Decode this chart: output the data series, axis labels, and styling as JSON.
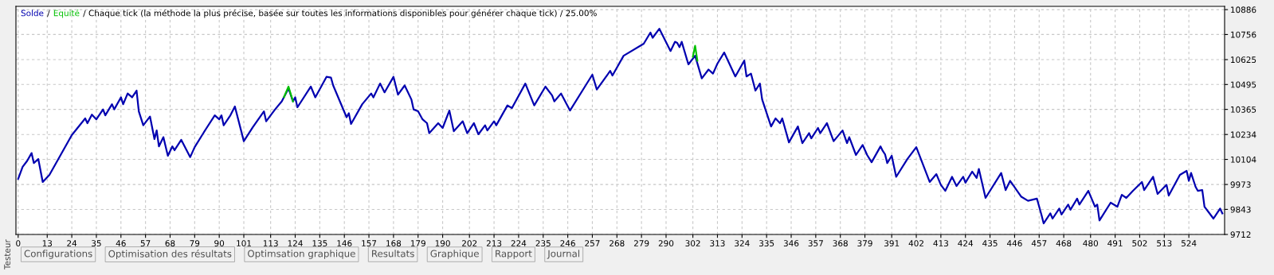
{
  "chart_data": {
    "type": "line",
    "annotations": [
      "/",
      "/ Chaque tick (la méthode la plus précise, basée sur toutes les informations disponibles pour générer chaque tick) / 25.00%",
      "Testeur",
      "Configurations",
      "Optimisation des résultats",
      "Optimsation graphique",
      "Resultats",
      "Graphique",
      "Rapport",
      "Journal"
    ],
    "series": [
      {
        "name": "Solde",
        "color": "#0000b0",
        "x": [
          0,
          2,
          4,
          6,
          7,
          9,
          11,
          14,
          19,
          24,
          30,
          31,
          33,
          35,
          38,
          39,
          42,
          43,
          46,
          47,
          49,
          51,
          53,
          54,
          56,
          59,
          61,
          62,
          63,
          65,
          67,
          69,
          70,
          73,
          77,
          79,
          84,
          88,
          90,
          91,
          92,
          95,
          97,
          101,
          105,
          110,
          111,
          115,
          118,
          121,
          123,
          124,
          125,
          131,
          133,
          138,
          140,
          141,
          147,
          148,
          149,
          154,
          158,
          159,
          162,
          164,
          168,
          170,
          173,
          176,
          177,
          179,
          181,
          183,
          184,
          188,
          190,
          193,
          195,
          199,
          201,
          204,
          206,
          209,
          210,
          213,
          214,
          219,
          221,
          227,
          231,
          236,
          239,
          240,
          243,
          247,
          254,
          257,
          259,
          265,
          266,
          271,
          280,
          283,
          284,
          287,
          292,
          294,
          295,
          296,
          297,
          300,
          303,
          306,
          309,
          311,
          313,
          316,
          321,
          325,
          326,
          328,
          330,
          332,
          333,
          337,
          339,
          341,
          342,
          345,
          349,
          351,
          354,
          355,
          358,
          359,
          362,
          365,
          369,
          371,
          372,
          375,
          378,
          380,
          382,
          386,
          387,
          388,
          389,
          391,
          393,
          398,
          402,
          408,
          411,
          413,
          415,
          418,
          420,
          423,
          424,
          427,
          429,
          430,
          433,
          440,
          442,
          444,
          449,
          452,
          456,
          458,
          459,
          462,
          463,
          466,
          467,
          470,
          471,
          474,
          475,
          479,
          482,
          483,
          484,
          489,
          492,
          494,
          496,
          499,
          503,
          504,
          508,
          510,
          514,
          515,
          520,
          523,
          524,
          525,
          527,
          528,
          530,
          531,
          533,
          535,
          538,
          539
        ],
        "values": [
          10002,
          10065,
          10096,
          10137,
          10085,
          10106,
          9986,
          10023,
          10127,
          10231,
          10318,
          10293,
          10338,
          10313,
          10365,
          10334,
          10392,
          10365,
          10428,
          10392,
          10448,
          10428,
          10463,
          10355,
          10282,
          10328,
          10210,
          10255,
          10172,
          10220,
          10123,
          10172,
          10152,
          10206,
          10116,
          10168,
          10262,
          10334,
          10313,
          10334,
          10282,
          10334,
          10380,
          10199,
          10272,
          10355,
          10303,
          10365,
          10407,
          10475,
          10407,
          10428,
          10376,
          10484,
          10428,
          10535,
          10531,
          10490,
          10324,
          10345,
          10289,
          10392,
          10448,
          10428,
          10500,
          10454,
          10535,
          10442,
          10490,
          10417,
          10365,
          10355,
          10313,
          10293,
          10241,
          10293,
          10268,
          10359,
          10251,
          10303,
          10241,
          10293,
          10235,
          10282,
          10255,
          10303,
          10282,
          10386,
          10372,
          10500,
          10386,
          10484,
          10438,
          10407,
          10448,
          10359,
          10490,
          10546,
          10469,
          10566,
          10542,
          10645,
          10708,
          10766,
          10739,
          10786,
          10670,
          10718,
          10712,
          10690,
          10718,
          10600,
          10645,
          10527,
          10573,
          10552,
          10604,
          10662,
          10537,
          10620,
          10537,
          10552,
          10463,
          10500,
          10417,
          10276,
          10318,
          10293,
          10318,
          10193,
          10276,
          10189,
          10241,
          10214,
          10268,
          10241,
          10293,
          10199,
          10255,
          10189,
          10220,
          10127,
          10179,
          10127,
          10089,
          10172,
          10148,
          10131,
          10085,
          10123,
          10013,
          10106,
          10168,
          9986,
          10027,
          9971,
          9940,
          10013,
          9965,
          10013,
          9982,
          10040,
          10007,
          10054,
          9903,
          10033,
          9944,
          9992,
          9909,
          9888,
          9899,
          9816,
          9770,
          9822,
          9795,
          9847,
          9816,
          9868,
          9841,
          9899,
          9868,
          9940,
          9857,
          9868,
          9785,
          9878,
          9857,
          9919,
          9903,
          9940,
          9986,
          9944,
          10013,
          9924,
          9971,
          9915,
          10023,
          10044,
          9992,
          10033,
          9961,
          9940,
          9944,
          9857,
          9826,
          9795,
          9847,
          9822
        ]
      },
      {
        "name": "Equité",
        "color": "#00c000",
        "x": [
          119,
          121,
          123,
          200,
          302,
          303,
          304
        ],
        "values": [
          10430,
          10484,
          10407,
          null,
          10640,
          10697,
          10620
        ]
      }
    ],
    "xlim": [
      -1,
      540
    ],
    "xticks": [
      0,
      13,
      24,
      35,
      46,
      57,
      68,
      79,
      90,
      101,
      113,
      124,
      135,
      146,
      157,
      168,
      179,
      190,
      202,
      213,
      224,
      235,
      246,
      257,
      268,
      279,
      290,
      302,
      313,
      324,
      335,
      346,
      357,
      368,
      379,
      391,
      402,
      413,
      424,
      435,
      446,
      457,
      468,
      480,
      491,
      502,
      513,
      524
    ],
    "ylim": [
      9712,
      10903
    ],
    "yticks": [
      9712,
      9843,
      9973,
      10104,
      10234,
      10365,
      10495,
      10625,
      10756,
      10886
    ],
    "grid": true,
    "legend": "top left"
  }
}
